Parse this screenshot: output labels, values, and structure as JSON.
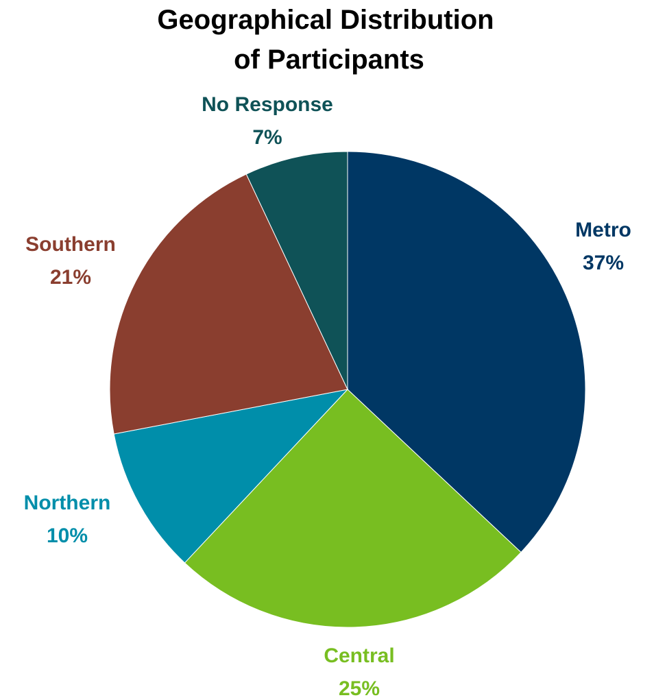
{
  "chart_data": {
    "type": "pie",
    "title_lines": [
      "Geographical Distribution",
      "of Participants"
    ],
    "slices": [
      {
        "label": "Metro",
        "value": 37,
        "display": "37%",
        "color": "#003764"
      },
      {
        "label": "Central",
        "value": 25,
        "display": "25%",
        "color": "#78BE21"
      },
      {
        "label": "Northern",
        "value": 10,
        "display": "10%",
        "color": "#008EAA"
      },
      {
        "label": "Southern",
        "value": 21,
        "display": "21%",
        "color": "#8A3E2F"
      },
      {
        "label": "No Response",
        "value": 7,
        "display": "7%",
        "color": "#0F5257"
      }
    ],
    "start": "12 o'clock, clockwise",
    "legend": "none (labels outside slices)"
  }
}
